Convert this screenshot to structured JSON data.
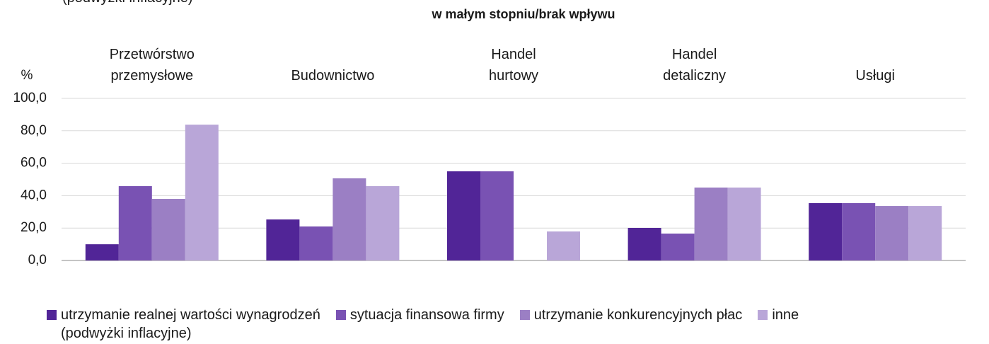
{
  "chart_data": {
    "type": "bar",
    "title": "w małym stopniu/brak wpływu",
    "annotations": [
      "(podwyżki inflacyjne)"
    ],
    "y_label": "%",
    "categories": [
      "Przetwórstwo\nprzemysłowe",
      "Budownictwo",
      "Handel\nhurtowy",
      "Handel\ndetaliczny",
      "Usługi"
    ],
    "series": [
      {
        "name": "utrzymanie realnej wartości wynagrodzeń\n(podwyżki inflacyjne)",
        "color": "#512597",
        "values": [
          10.0,
          25.3,
          55.0,
          20.1,
          35.4
        ]
      },
      {
        "name": "sytuacja finansowa firmy",
        "color": "#7952b3",
        "values": [
          45.9,
          21.0,
          55.0,
          16.6,
          35.4
        ]
      },
      {
        "name": "utrzymanie konkurencyjnych płac",
        "color": "#9b7fc4",
        "values": [
          38.0,
          50.7,
          null,
          45.0,
          33.6
        ]
      },
      {
        "name": "inne",
        "color": "#b9a6d8",
        "values": [
          83.8,
          45.9,
          17.9,
          45.0,
          33.6
        ]
      }
    ],
    "ylim": [
      0,
      100
    ],
    "yticks": [
      {
        "value": 0,
        "label": "0,0"
      },
      {
        "value": 20,
        "label": "20,0"
      },
      {
        "value": 40,
        "label": "40,0"
      },
      {
        "value": 60,
        "label": "60,0"
      },
      {
        "value": 80,
        "label": "80,0"
      },
      {
        "value": 100,
        "label": "100,0"
      }
    ],
    "grid": true,
    "legend": "bottom"
  }
}
